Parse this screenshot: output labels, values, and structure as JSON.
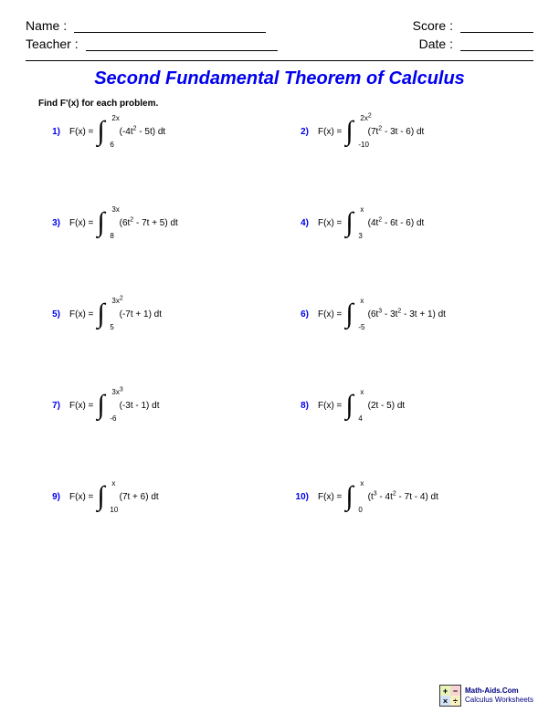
{
  "header": {
    "name_label": "Name :",
    "teacher_label": "Teacher :",
    "score_label": "Score :",
    "date_label": "Date :"
  },
  "title": "Second Fundamental Theorem of Calculus",
  "instructions": "Find F'(x) for each problem.",
  "fx_label": "F(x) =",
  "problems": [
    {
      "num": "1)",
      "upper_base": "2x",
      "upper_exp": "",
      "lower": "6",
      "integrand_plain": "(-4t",
      "exp1": "2",
      "rest": " - 5t) dt"
    },
    {
      "num": "2)",
      "upper_base": "2x",
      "upper_exp": "2",
      "lower": "-10",
      "integrand_plain": "(7t",
      "exp1": "2",
      "rest": " - 3t - 6) dt"
    },
    {
      "num": "3)",
      "upper_base": "3x",
      "upper_exp": "",
      "lower": "8",
      "integrand_plain": "(6t",
      "exp1": "2",
      "rest": " - 7t + 5) dt"
    },
    {
      "num": "4)",
      "upper_base": "x",
      "upper_exp": "",
      "lower": "3",
      "integrand_plain": "(4t",
      "exp1": "2",
      "rest": " - 6t - 6) dt"
    },
    {
      "num": "5)",
      "upper_base": "3x",
      "upper_exp": "2",
      "lower": "5",
      "integrand_plain": "(-7t + 1) dt",
      "exp1": "",
      "rest": ""
    },
    {
      "num": "6)",
      "upper_base": "x",
      "upper_exp": "",
      "lower": "-5",
      "integrand_plain": "(6t",
      "exp1": "3",
      "mid": " - 3t",
      "exp2": "2",
      "rest": " - 3t + 1) dt"
    },
    {
      "num": "7)",
      "upper_base": "3x",
      "upper_exp": "3",
      "lower": "-6",
      "integrand_plain": "(-3t - 1) dt",
      "exp1": "",
      "rest": ""
    },
    {
      "num": "8)",
      "upper_base": "x",
      "upper_exp": "",
      "lower": "4",
      "integrand_plain": "(2t - 5) dt",
      "exp1": "",
      "rest": ""
    },
    {
      "num": "9)",
      "upper_base": "x",
      "upper_exp": "",
      "lower": "10",
      "integrand_plain": "(7t + 6) dt",
      "exp1": "",
      "rest": ""
    },
    {
      "num": "10)",
      "upper_base": "x",
      "upper_exp": "",
      "lower": "0",
      "integrand_plain": "(t",
      "exp1": "3",
      "mid": " - 4t",
      "exp2": "2",
      "rest": " - 7t - 4) dt"
    }
  ],
  "logo_cells": {
    "tl": "+",
    "tr": "−",
    "bl": "×",
    "br": "÷"
  },
  "logo_colors": {
    "tl": "#e8f5b8",
    "tr": "#f8d4d4",
    "bl": "#d4e4f8",
    "br": "#f8f0c0"
  },
  "footer": {
    "line1": "Math-Aids.Com",
    "line2": "Calculus Worksheets"
  }
}
